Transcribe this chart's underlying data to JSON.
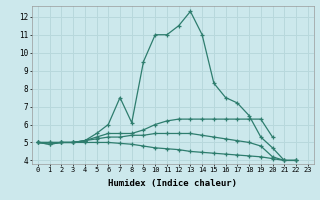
{
  "xlabel": "Humidex (Indice chaleur)",
  "background_color": "#cce8ec",
  "grid_color": "#b8d8dc",
  "line_color": "#2e7d6e",
  "xlim": [
    -0.5,
    23.5
  ],
  "ylim": [
    3.8,
    12.6
  ],
  "yticks": [
    4,
    5,
    6,
    7,
    8,
    9,
    10,
    11,
    12
  ],
  "xticks": [
    0,
    1,
    2,
    3,
    4,
    5,
    6,
    7,
    8,
    9,
    10,
    11,
    12,
    13,
    14,
    15,
    16,
    17,
    18,
    19,
    20,
    21,
    22,
    23
  ],
  "series": [
    {
      "x": [
        0,
        1,
        2,
        3,
        4,
        5,
        6,
        7,
        8,
        9,
        10,
        11,
        12,
        13,
        14,
        15,
        16,
        17,
        18,
        19,
        20,
        21,
        22
      ],
      "y": [
        5.0,
        4.9,
        5.0,
        5.0,
        5.1,
        5.5,
        6.0,
        7.5,
        6.1,
        9.5,
        11.0,
        11.0,
        11.5,
        12.3,
        11.0,
        8.3,
        7.5,
        7.2,
        6.5,
        5.3,
        4.7,
        4.0,
        4.0
      ]
    },
    {
      "x": [
        0,
        1,
        2,
        3,
        4,
        5,
        6,
        7,
        8,
        9,
        10,
        11,
        12,
        13,
        14,
        15,
        16,
        17,
        18,
        19,
        20
      ],
      "y": [
        5.0,
        5.0,
        5.0,
        5.0,
        5.1,
        5.3,
        5.5,
        5.5,
        5.5,
        5.7,
        6.0,
        6.2,
        6.3,
        6.3,
        6.3,
        6.3,
        6.3,
        6.3,
        6.3,
        6.3,
        5.3
      ]
    },
    {
      "x": [
        0,
        1,
        2,
        3,
        4,
        5,
        6,
        7,
        8,
        9,
        10,
        11,
        12,
        13,
        14,
        15,
        16,
        17,
        18,
        19,
        20,
        21,
        22
      ],
      "y": [
        5.0,
        5.0,
        5.0,
        5.0,
        5.1,
        5.2,
        5.3,
        5.3,
        5.4,
        5.4,
        5.5,
        5.5,
        5.5,
        5.5,
        5.4,
        5.3,
        5.2,
        5.1,
        5.0,
        4.8,
        4.2,
        4.0,
        4.0
      ]
    },
    {
      "x": [
        0,
        1,
        2,
        3,
        4,
        5,
        6,
        7,
        8,
        9,
        10,
        11,
        12,
        13,
        14,
        15,
        16,
        17,
        18,
        19,
        20,
        21,
        22
      ],
      "y": [
        5.0,
        4.9,
        5.0,
        5.0,
        5.0,
        5.0,
        5.0,
        4.95,
        4.9,
        4.8,
        4.7,
        4.65,
        4.6,
        4.5,
        4.45,
        4.4,
        4.35,
        4.3,
        4.25,
        4.2,
        4.1,
        4.0,
        4.0
      ]
    }
  ]
}
